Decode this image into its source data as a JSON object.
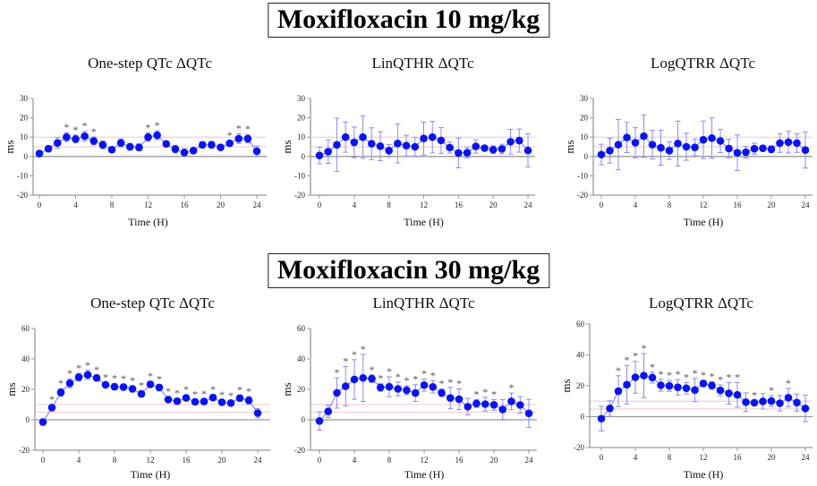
{
  "headings": [
    "Moxifloxacin 10 mg/kg",
    "Moxifloxacin 30 mg/kg"
  ],
  "colors": {
    "point": "#0a14ee",
    "line": "#8a8cf0",
    "ref": "#f3c6d0",
    "axis": "#999999",
    "star": "#555555"
  },
  "chart_data": [
    {
      "type": "scatter",
      "group": "Moxifloxacin 10 mg/kg",
      "title": "One-step QTc ΔQTc",
      "xlabel": "Time (H)",
      "ylabel": "ms",
      "ylim": [
        -20,
        30
      ],
      "yticks": [
        -20,
        -10,
        0,
        10,
        20,
        30
      ],
      "xticks": [
        0,
        4,
        8,
        12,
        16,
        20,
        24
      ],
      "reference_lines": [
        5,
        10
      ],
      "x": [
        0,
        1,
        2,
        3,
        4,
        5,
        6,
        7,
        8,
        9,
        10,
        11,
        12,
        13,
        14,
        15,
        16,
        17,
        18,
        19,
        20,
        21,
        22,
        23,
        24
      ],
      "values": [
        1.5,
        4,
        7,
        10,
        9,
        10.5,
        8,
        6,
        3.5,
        7,
        5,
        4.7,
        10,
        11,
        6.5,
        3.8,
        2,
        3,
        6,
        6,
        4.7,
        6.8,
        9.2,
        9.2,
        2.7
      ],
      "errors": [
        1.5,
        1.5,
        2.8,
        2.3,
        2,
        2.5,
        2,
        2,
        1.5,
        2,
        1.8,
        1.8,
        2.2,
        2.3,
        1.5,
        2,
        2,
        1.5,
        1.5,
        1.8,
        1.3,
        1.5,
        2.5,
        2.2,
        2.7
      ],
      "significant": [
        3,
        4,
        5,
        6,
        12,
        13,
        21,
        22,
        23
      ]
    },
    {
      "type": "scatter",
      "group": "Moxifloxacin 10 mg/kg",
      "title": "LinQTHR ΔQTc",
      "xlabel": "Time (H)",
      "ylabel": "ms",
      "ylim": [
        -20,
        30
      ],
      "yticks": [
        -20,
        -10,
        0,
        10,
        20,
        30
      ],
      "xticks": [
        0,
        4,
        8,
        12,
        16,
        20,
        24
      ],
      "reference_lines": [
        5,
        10
      ],
      "x": [
        0,
        1,
        2,
        3,
        4,
        5,
        6,
        7,
        8,
        9,
        10,
        11,
        12,
        13,
        14,
        15,
        16,
        17,
        18,
        19,
        20,
        21,
        22,
        23,
        24
      ],
      "values": [
        0.5,
        2.5,
        6,
        10,
        7.3,
        10,
        6.6,
        5.3,
        3,
        6.7,
        5.6,
        5,
        9.3,
        10,
        8.3,
        4.6,
        1.8,
        1.9,
        5.2,
        4.3,
        3.5,
        3.9,
        7.6,
        8.2,
        3.1
      ],
      "errors": [
        4.3,
        6.1,
        13.8,
        7.8,
        7.9,
        11,
        8.2,
        7.5,
        3.2,
        10,
        5.4,
        4.8,
        8.5,
        8.2,
        6.7,
        2.9,
        7.7,
        2.6,
        3.5,
        0.8,
        2,
        2.4,
        6.4,
        6,
        8.6
      ],
      "significant": []
    },
    {
      "type": "scatter",
      "group": "Moxifloxacin 10 mg/kg",
      "title": "LogQTRR ΔQTc",
      "xlabel": "Time (H)",
      "ylabel": "ms",
      "ylim": [
        -20,
        30
      ],
      "yticks": [
        -20,
        -10,
        0,
        10,
        20,
        30
      ],
      "xticks": [
        0,
        4,
        8,
        12,
        16,
        20,
        24
      ],
      "reference_lines": [
        5,
        10
      ],
      "x": [
        0,
        1,
        2,
        3,
        4,
        5,
        6,
        7,
        8,
        9,
        10,
        11,
        12,
        13,
        14,
        15,
        16,
        17,
        18,
        19,
        20,
        21,
        22,
        23,
        24
      ],
      "values": [
        1,
        3,
        6.1,
        9.8,
        7.1,
        10.5,
        6.1,
        4.5,
        3,
        6.7,
        5,
        4.7,
        8.6,
        9.5,
        8,
        4.1,
        1.9,
        2.2,
        4,
        4.2,
        3.7,
        6.9,
        7.4,
        6.9,
        3.3
      ],
      "errors": [
        5.3,
        6.4,
        13,
        7.8,
        7.8,
        11,
        7.4,
        9,
        4.5,
        11.6,
        7,
        4.3,
        9.7,
        10.5,
        6,
        4.8,
        9.2,
        3,
        2.8,
        0.8,
        1.8,
        4.8,
        5.6,
        4.8,
        9.3
      ],
      "significant": []
    },
    {
      "type": "scatter",
      "group": "Moxifloxacin 30 mg/kg",
      "title": "One-step QTc ΔQTc",
      "xlabel": "Time (H)",
      "ylabel": "ms",
      "ylim": [
        -20,
        60
      ],
      "yticks": [
        -20,
        0,
        20,
        40,
        60
      ],
      "xticks": [
        0,
        4,
        8,
        12,
        16,
        20,
        24
      ],
      "reference_lines": [
        5,
        10
      ],
      "x": [
        0,
        1,
        2,
        3,
        4,
        5,
        6,
        7,
        8,
        9,
        10,
        11,
        12,
        13,
        14,
        15,
        16,
        17,
        18,
        19,
        20,
        21,
        22,
        23,
        24
      ],
      "values": [
        -1.5,
        8,
        18,
        24,
        28,
        29.5,
        27.5,
        23,
        21.7,
        21.5,
        20.3,
        17,
        23.3,
        21.2,
        13.3,
        12.2,
        14.4,
        11.8,
        12,
        14.6,
        11.5,
        11,
        14.2,
        12.8,
        4.4
      ],
      "errors": [
        2,
        2,
        2.5,
        3,
        2.5,
        3,
        2,
        1.5,
        2,
        2,
        2,
        2,
        2,
        2,
        2,
        2,
        2,
        1.5,
        1.5,
        2,
        1.5,
        1.5,
        2,
        2.5,
        3
      ],
      "significant": [
        1,
        2,
        3,
        4,
        5,
        6,
        7,
        8,
        9,
        10,
        11,
        12,
        13,
        14,
        15,
        16,
        17,
        18,
        19,
        20,
        21,
        22,
        23
      ]
    },
    {
      "type": "scatter",
      "group": "Moxifloxacin 30 mg/kg",
      "title": "LinQTHR ΔQTc",
      "xlabel": "Time (H)",
      "ylabel": "ms",
      "ylim": [
        -20,
        60
      ],
      "yticks": [
        -20,
        0,
        20,
        40,
        60
      ],
      "xticks": [
        0,
        4,
        8,
        12,
        16,
        20,
        24
      ],
      "reference_lines": [
        5,
        10
      ],
      "x": [
        0,
        1,
        2,
        3,
        4,
        5,
        6,
        7,
        8,
        9,
        10,
        11,
        12,
        13,
        14,
        15,
        16,
        17,
        18,
        19,
        20,
        21,
        22,
        23,
        24
      ],
      "values": [
        -0.8,
        5.5,
        17.7,
        22,
        26.5,
        27.5,
        27,
        21.2,
        21.7,
        20.3,
        19.4,
        17.6,
        22.8,
        21.6,
        17.7,
        14.3,
        13.5,
        8.6,
        10.7,
        10.3,
        9.8,
        6.8,
        12.1,
        9.7,
        4.2
      ],
      "errors": [
        6,
        4,
        10,
        13,
        13,
        15.5,
        2.5,
        2.5,
        6.5,
        4.5,
        3,
        5.5,
        4,
        4,
        2.5,
        7,
        6.8,
        5.5,
        2.5,
        4.5,
        3.5,
        6.5,
        5.5,
        5.5,
        9.3
      ],
      "significant": [
        2,
        3,
        4,
        5,
        6,
        7,
        8,
        9,
        10,
        11,
        12,
        13,
        14,
        15,
        16,
        18,
        19,
        20,
        22
      ]
    },
    {
      "type": "scatter",
      "group": "Moxifloxacin 30 mg/kg",
      "title": "LogQTRR ΔQTc",
      "xlabel": "Time (H)",
      "ylabel": "ms",
      "ylim": [
        -20,
        60
      ],
      "yticks": [
        -20,
        0,
        20,
        40,
        60
      ],
      "xticks": [
        0,
        4,
        8,
        12,
        16,
        20,
        24
      ],
      "reference_lines": [
        5,
        10
      ],
      "x": [
        0,
        1,
        2,
        3,
        4,
        5,
        6,
        7,
        8,
        9,
        10,
        11,
        12,
        13,
        14,
        15,
        16,
        17,
        18,
        19,
        20,
        21,
        22,
        23,
        24
      ],
      "values": [
        -1.3,
        5.3,
        16.5,
        20.7,
        25.5,
        26.6,
        25.3,
        20.3,
        19.9,
        19,
        18.4,
        17.2,
        21.5,
        20.2,
        17,
        15.1,
        14.1,
        9.4,
        9,
        9.9,
        10.1,
        8.7,
        12.3,
        9.1,
        5.3
      ],
      "errors": [
        8,
        5,
        10,
        12.5,
        10.3,
        14.3,
        3.5,
        3.8,
        3.5,
        5,
        3.7,
        7.5,
        2,
        2.5,
        3.5,
        7,
        8,
        6,
        1.5,
        5,
        3.5,
        5,
        6,
        5.5,
        8.5
      ],
      "significant": [
        2,
        3,
        4,
        5,
        6,
        7,
        8,
        9,
        10,
        11,
        12,
        13,
        14,
        15,
        16,
        18,
        20,
        22
      ]
    }
  ]
}
